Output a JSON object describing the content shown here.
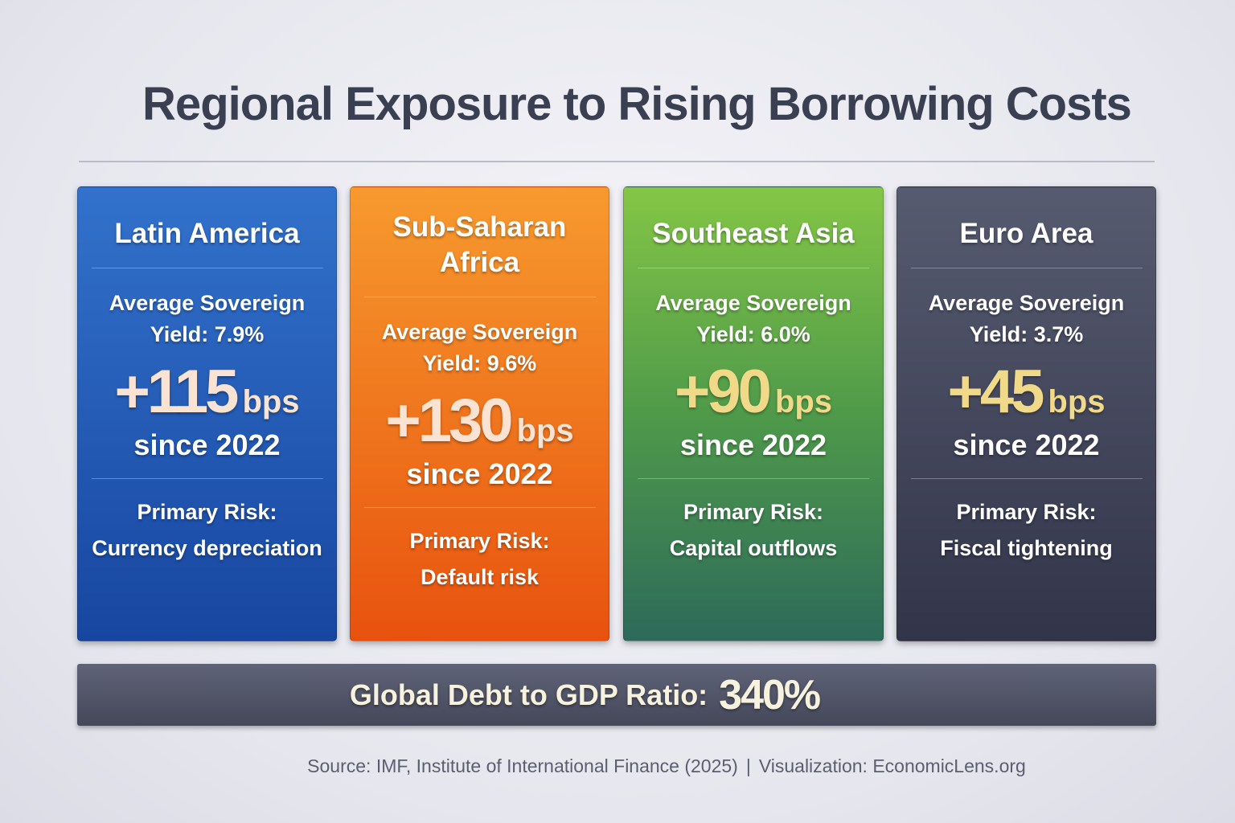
{
  "title": "Regional Exposure to Rising Borrowing Costs",
  "cards": [
    {
      "region": "Latin America",
      "yield_line1": "Average Sovereign",
      "yield_line2": "Yield: 7.9%",
      "change": "+115",
      "unit": "bps",
      "since": "since 2022",
      "risk_label": "Primary Risk:",
      "risk": "Currency depreciation",
      "color_top": "#3272cc",
      "color_bottom": "#1746a0",
      "number_color": "#fbe3d3"
    },
    {
      "region": "Sub-Saharan Africa",
      "yield_line1": "Average Sovereign",
      "yield_line2": "Yield: 9.6%",
      "change": "+130",
      "unit": "bps",
      "since": "since 2022",
      "risk_label": "Primary Risk:",
      "risk": "Default risk",
      "color_top": "#f79a2e",
      "color_bottom": "#e8520e",
      "number_color": "#fbe3d3"
    },
    {
      "region": "Southeast Asia",
      "yield_line1": "Average Sovereign",
      "yield_line2": "Yield: 6.0%",
      "change": "+90",
      "unit": "bps",
      "since": "since 2022",
      "risk_label": "Primary Risk:",
      "risk": "Capital outflows",
      "color_top": "#84c646",
      "color_bottom": "#2d6a5a",
      "number_color": "#f1d98a"
    },
    {
      "region": "Euro Area",
      "yield_line1": "Average Sovereign",
      "yield_line2": "Yield: 3.7%",
      "change": "+45",
      "unit": "bps",
      "since": "since 2022",
      "risk_label": "Primary Risk:",
      "risk": "Fiscal tightening",
      "color_top": "#575b70",
      "color_bottom": "#32354a",
      "number_color": "#f1d98a"
    }
  ],
  "summary": {
    "label": "Global Debt to GDP Ratio:",
    "value": "340%"
  },
  "footer": {
    "source": "Source: IMF, Institute of International Finance (2025)",
    "separator": "|",
    "credit": "Visualization: EconomicLens.org"
  }
}
